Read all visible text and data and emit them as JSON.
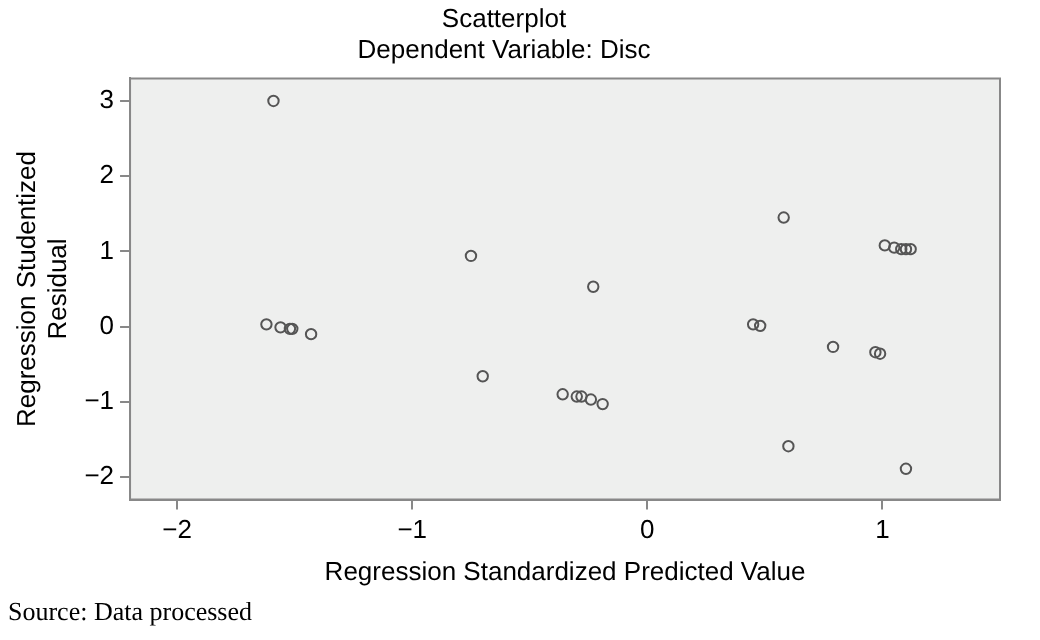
{
  "chart_data": {
    "type": "scatter",
    "title": "Scatterplot",
    "subtitle": "Dependent Variable: Disc",
    "xlabel": "Regression Standardized Predicted Value",
    "ylabel": "Regression Studentized Residual",
    "annotations": [
      "Source: Data processed"
    ],
    "x": [
      -1.59,
      -1.62,
      -1.56,
      -1.52,
      -1.51,
      -1.43,
      -0.75,
      -0.7,
      -0.23,
      -0.36,
      -0.3,
      -0.28,
      -0.24,
      -0.19,
      0.58,
      1.01,
      1.05,
      1.08,
      1.1,
      1.12,
      0.45,
      0.48,
      0.79,
      0.97,
      0.99,
      0.6,
      1.1
    ],
    "series": [
      {
        "color": "#555555",
        "values": [
          3.0,
          0.03,
          -0.01,
          -0.03,
          -0.03,
          -0.1,
          0.94,
          -0.66,
          0.53,
          -0.9,
          -0.93,
          -0.93,
          -0.97,
          -1.03,
          1.45,
          1.08,
          1.05,
          1.03,
          1.03,
          1.03,
          0.03,
          0.01,
          -0.27,
          -0.34,
          -0.36,
          -1.59,
          -1.89
        ]
      }
    ],
    "xlim": [
      -2.2,
      1.5
    ],
    "ylim": [
      -2.3,
      3.3
    ],
    "xticks": [
      -2,
      -1,
      0,
      1
    ],
    "yticks": [
      -2,
      -1,
      0,
      1,
      2,
      3
    ],
    "grid": false,
    "legend": false,
    "marker": "circle"
  }
}
